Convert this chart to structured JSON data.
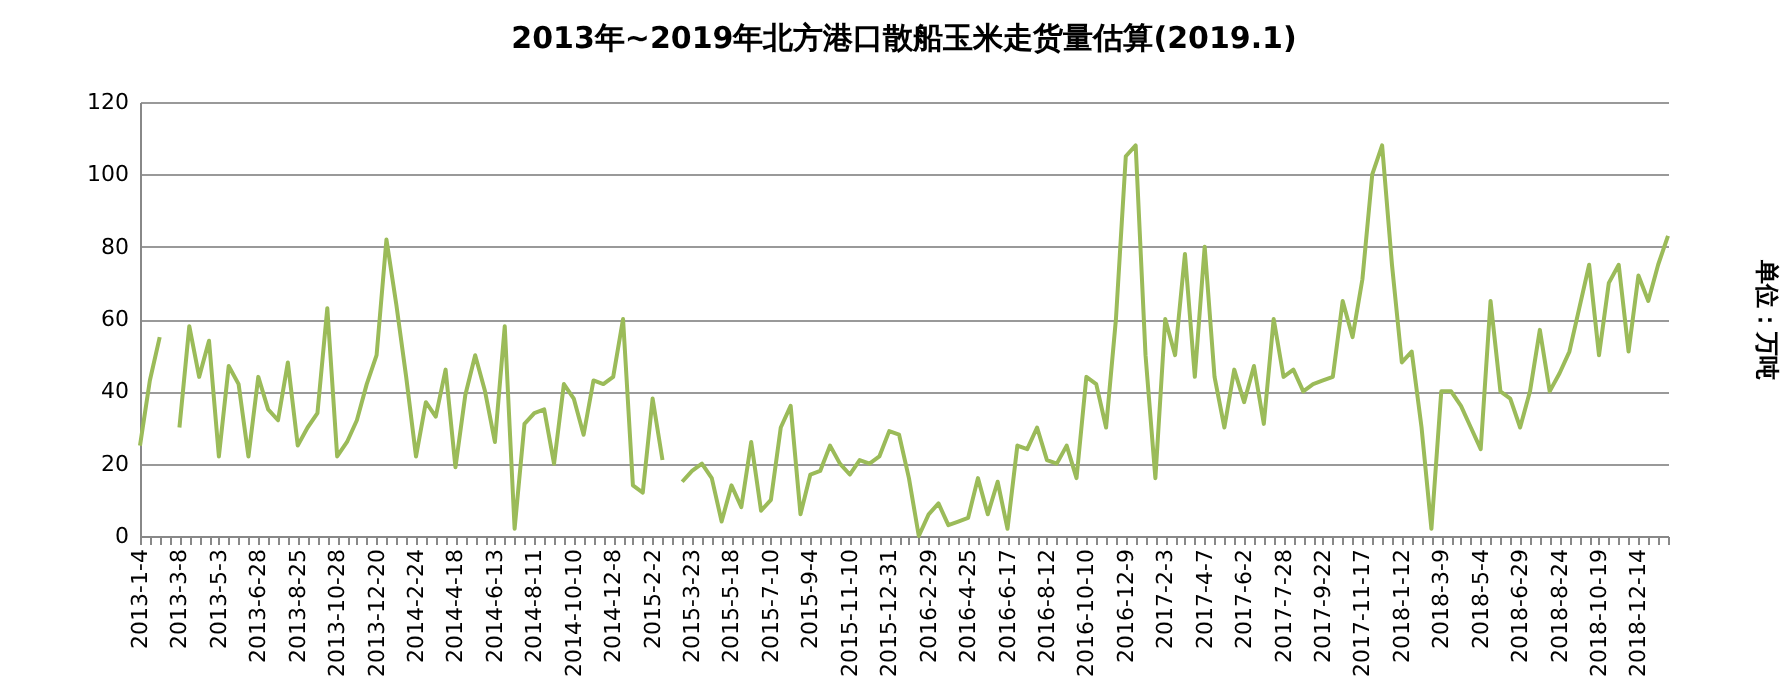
{
  "chart_data": {
    "type": "line",
    "title": "2013年~2019年北方港口散船玉米走货量估算(2019.1)",
    "ylabel": "单位：万吨",
    "categories": [
      "2013-1-4",
      null,
      null,
      null,
      "2013-3-8",
      null,
      null,
      null,
      "2013-5-3",
      null,
      null,
      null,
      "2013-6-28",
      null,
      null,
      null,
      "2013-8-25",
      null,
      null,
      null,
      "2013-10-28",
      null,
      null,
      null,
      "2013-12-20",
      null,
      null,
      null,
      "2014-2-24",
      null,
      null,
      null,
      "2014-4-18",
      null,
      null,
      null,
      "2014-6-13",
      null,
      null,
      null,
      "2014-8-11",
      null,
      null,
      null,
      "2014-10-10",
      null,
      null,
      null,
      "2014-12-8",
      null,
      null,
      null,
      "2015-2-2",
      null,
      null,
      null,
      "2015-3-23",
      null,
      null,
      null,
      "2015-5-18",
      null,
      null,
      null,
      "2015-7-10",
      null,
      null,
      null,
      "2015-9-4",
      null,
      null,
      null,
      "2015-11-10",
      null,
      null,
      null,
      "2015-12-31",
      null,
      null,
      null,
      "2016-2-29",
      null,
      null,
      null,
      "2016-4-25",
      null,
      null,
      null,
      "2016-6-17",
      null,
      null,
      null,
      "2016-8-12",
      null,
      null,
      null,
      "2016-10-10",
      null,
      null,
      null,
      "2016-12-9",
      null,
      null,
      null,
      "2017-2-3",
      null,
      null,
      null,
      "2017-4-7",
      null,
      null,
      null,
      "2017-6-2",
      null,
      null,
      null,
      "2017-7-28",
      null,
      null,
      null,
      "2017-9-22",
      null,
      null,
      null,
      "2017-11-17",
      null,
      null,
      null,
      "2018-1-12",
      null,
      null,
      null,
      "2018-3-9",
      null,
      null,
      null,
      "2018-5-4",
      null,
      null,
      null,
      "2018-6-29",
      null,
      null,
      null,
      "2018-8-24",
      null,
      null,
      null,
      "2018-10-19",
      null,
      null,
      null,
      "2018-12-14",
      null,
      null,
      null
    ],
    "series": [
      {
        "color": "#9bbb59",
        "values": [
          25,
          43,
          55,
          null,
          30,
          58,
          44,
          54,
          22,
          47,
          42,
          22,
          44,
          35,
          32,
          48,
          25,
          30,
          34,
          63,
          22,
          26,
          32,
          42,
          50,
          82,
          64,
          44,
          22,
          37,
          33,
          46,
          19,
          39,
          50,
          40,
          26,
          58,
          2,
          31,
          34,
          35,
          20,
          42,
          38,
          28,
          43,
          42,
          44,
          60,
          14,
          12,
          38,
          21,
          null,
          15,
          18,
          20,
          16,
          4,
          14,
          8,
          26,
          7,
          10,
          30,
          36,
          6,
          17,
          18,
          25,
          20,
          17,
          21,
          20,
          22,
          29,
          28,
          16,
          0,
          6,
          9,
          3,
          4,
          5,
          16,
          6,
          15,
          2,
          25,
          24,
          30,
          21,
          20,
          25,
          16,
          44,
          42,
          30,
          60,
          105,
          108,
          50,
          16,
          60,
          50,
          78,
          44,
          80,
          44,
          30,
          46,
          37,
          47,
          31,
          60,
          44,
          46,
          40,
          42,
          43,
          44,
          65,
          55,
          71,
          100,
          108,
          75,
          48,
          51,
          30,
          2,
          40,
          40,
          36,
          30,
          24,
          65,
          40,
          38,
          30,
          40,
          57,
          40,
          45,
          51,
          63,
          75,
          50,
          70,
          75,
          51,
          72,
          65,
          75,
          83
        ]
      }
    ],
    "ylim": [
      0,
      120
    ],
    "yticks": [
      0,
      20,
      40,
      60,
      80,
      100,
      120
    ],
    "grid": "y",
    "marker": "none",
    "line_style": "solid"
  }
}
